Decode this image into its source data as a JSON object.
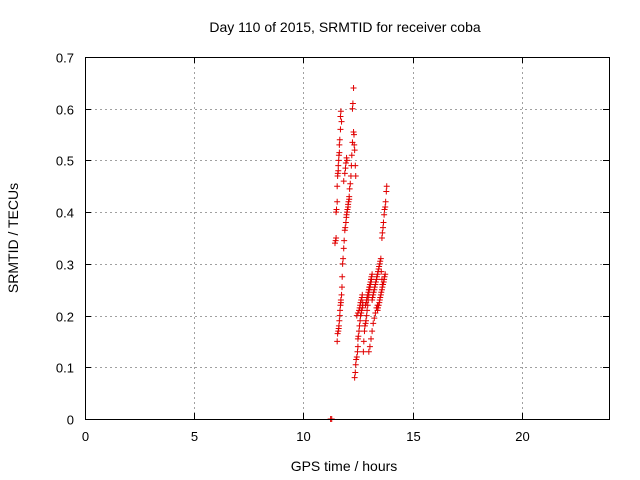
{
  "chart_data": {
    "type": "scatter",
    "title": "Day 110 of 2015, SRMTID for receiver coba",
    "xlabel": "GPS time / hours",
    "ylabel": "SRMTID / TECUs",
    "xlim": [
      0,
      24
    ],
    "ylim": [
      0,
      0.7
    ],
    "xticks": [
      0,
      5,
      10,
      15,
      20
    ],
    "yticks": [
      0,
      0.1,
      0.2,
      0.3,
      0.4,
      0.5,
      0.6,
      0.7
    ],
    "grid": true,
    "marker": "+",
    "color": "#e00000",
    "series": [
      {
        "name": "SRMTID",
        "x": [
          11.25,
          11.3,
          11.45,
          11.48,
          11.5,
          11.5,
          11.52,
          11.55,
          11.55,
          11.57,
          11.58,
          11.6,
          11.6,
          11.62,
          11.63,
          11.65,
          11.65,
          11.67,
          11.7,
          11.7,
          11.72,
          11.75,
          11.55,
          11.57,
          11.6,
          11.62,
          11.63,
          11.65,
          11.67,
          11.68,
          11.7,
          11.72,
          11.72,
          11.75,
          11.77,
          11.78,
          11.8,
          11.82,
          11.85,
          11.87,
          11.9,
          11.92,
          11.95,
          11.97,
          11.98,
          12.0,
          12.02,
          12.05,
          12.05,
          12.07,
          12.1,
          12.1,
          12.12,
          12.15,
          12.18,
          12.2,
          12.22,
          12.25,
          11.85,
          11.9,
          11.93,
          11.95,
          11.98,
          12.0,
          12.25,
          12.27,
          12.3,
          12.3,
          12.32,
          12.33,
          12.35,
          12.38,
          12.4,
          12.35,
          12.38,
          12.4,
          12.42,
          12.45,
          12.48,
          12.5,
          12.5,
          12.52,
          12.55,
          12.57,
          12.6,
          12.62,
          12.65,
          12.67,
          12.7,
          12.72,
          12.72,
          12.45,
          12.5,
          12.55,
          12.58,
          12.6,
          12.62,
          12.65,
          12.68,
          12.7,
          12.75,
          12.77,
          12.8,
          12.82,
          12.85,
          12.87,
          12.9,
          12.92,
          12.95,
          12.97,
          13.0,
          13.02,
          13.05,
          13.07,
          13.1,
          13.12,
          13.15,
          12.85,
          12.88,
          12.9,
          12.92,
          12.95,
          12.98,
          13.0,
          13.02,
          13.05,
          13.08,
          13.1,
          13.12,
          13.15,
          13.17,
          13.2,
          13.22,
          13.25,
          13.27,
          13.3,
          13.32,
          13.35,
          13.37,
          13.4,
          13.42,
          13.45,
          13.47,
          13.5,
          13.52,
          13.55,
          13.57,
          13.6,
          13.62,
          13.4,
          13.42,
          13.45,
          13.48,
          13.5,
          13.52,
          13.55,
          13.57,
          13.6,
          13.62,
          13.65,
          13.68,
          13.7,
          13.72,
          13.75,
          13.6,
          13.62,
          13.65,
          13.67,
          13.7,
          13.72,
          13.75,
          13.77,
          13.8,
          13.82,
          13.0,
          13.05,
          13.1,
          13.15,
          13.2,
          13.25,
          13.3,
          13.35,
          13.4
        ],
        "y": [
          0.0,
          0.0,
          0.34,
          0.345,
          0.35,
          0.4,
          0.405,
          0.42,
          0.45,
          0.47,
          0.475,
          0.48,
          0.49,
          0.5,
          0.51,
          0.515,
          0.53,
          0.54,
          0.56,
          0.585,
          0.595,
          0.575,
          0.15,
          0.165,
          0.17,
          0.175,
          0.18,
          0.19,
          0.2,
          0.21,
          0.22,
          0.225,
          0.23,
          0.24,
          0.255,
          0.275,
          0.3,
          0.31,
          0.33,
          0.345,
          0.365,
          0.37,
          0.38,
          0.39,
          0.395,
          0.4,
          0.405,
          0.41,
          0.415,
          0.42,
          0.425,
          0.43,
          0.445,
          0.455,
          0.47,
          0.49,
          0.51,
          0.535,
          0.46,
          0.475,
          0.485,
          0.495,
          0.505,
          0.5,
          0.6,
          0.61,
          0.64,
          0.555,
          0.55,
          0.53,
          0.52,
          0.49,
          0.47,
          0.08,
          0.09,
          0.105,
          0.115,
          0.12,
          0.13,
          0.14,
          0.155,
          0.16,
          0.17,
          0.18,
          0.19,
          0.2,
          0.205,
          0.21,
          0.215,
          0.22,
          0.225,
          0.2,
          0.205,
          0.21,
          0.215,
          0.22,
          0.225,
          0.23,
          0.235,
          0.24,
          0.13,
          0.15,
          0.17,
          0.18,
          0.185,
          0.19,
          0.2,
          0.21,
          0.22,
          0.23,
          0.24,
          0.25,
          0.255,
          0.26,
          0.265,
          0.27,
          0.28,
          0.22,
          0.225,
          0.23,
          0.235,
          0.24,
          0.245,
          0.25,
          0.255,
          0.26,
          0.265,
          0.27,
          0.275,
          0.23,
          0.235,
          0.24,
          0.245,
          0.25,
          0.255,
          0.26,
          0.265,
          0.27,
          0.275,
          0.28,
          0.285,
          0.29,
          0.295,
          0.3,
          0.305,
          0.31,
          0.285,
          0.27,
          0.26,
          0.21,
          0.215,
          0.22,
          0.225,
          0.23,
          0.235,
          0.24,
          0.245,
          0.25,
          0.255,
          0.26,
          0.265,
          0.27,
          0.275,
          0.28,
          0.35,
          0.36,
          0.37,
          0.38,
          0.395,
          0.405,
          0.41,
          0.42,
          0.44,
          0.45,
          0.13,
          0.14,
          0.155,
          0.17,
          0.185,
          0.195,
          0.205,
          0.215,
          0.22
        ]
      }
    ]
  }
}
